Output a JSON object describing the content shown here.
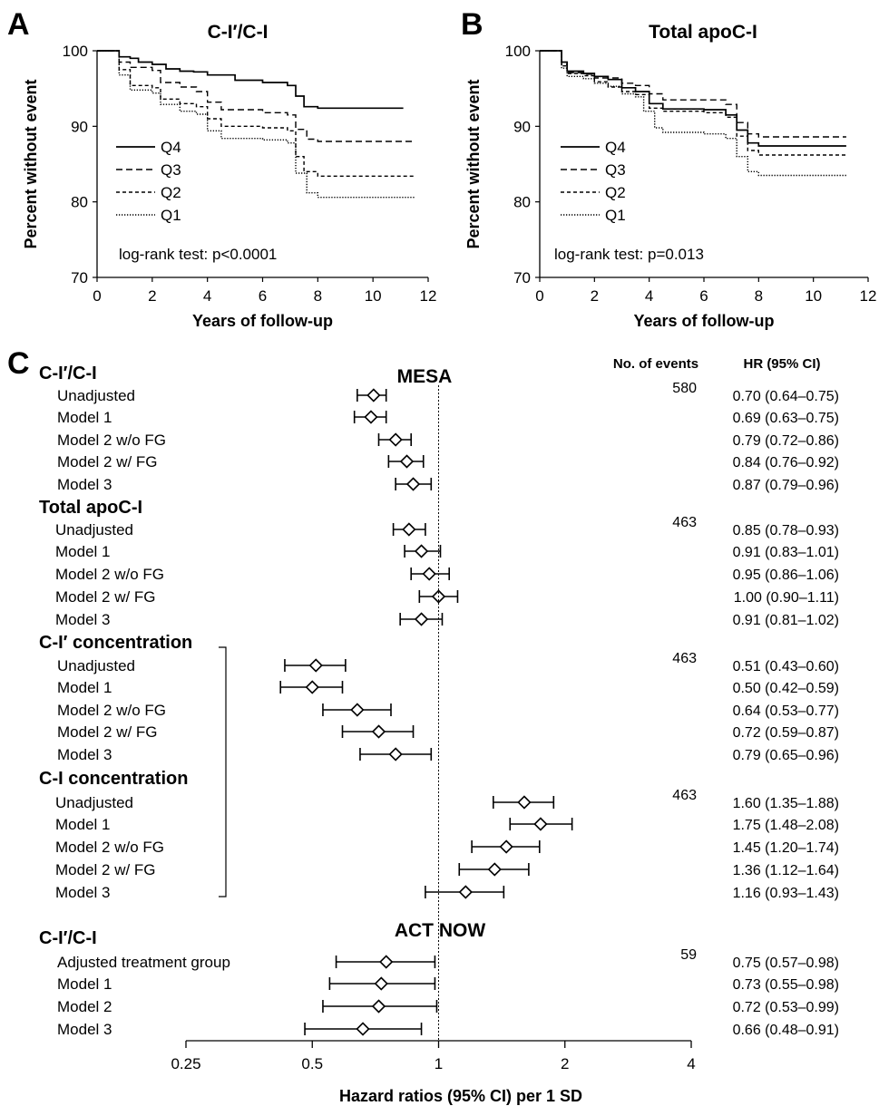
{
  "chart_data": [
    {
      "type": "line",
      "panel": "A",
      "title": "C-I′/C-I",
      "xlabel": "Years of follow-up",
      "ylabel": "Percent without event",
      "xlim": [
        0,
        12
      ],
      "ylim": [
        70,
        100
      ],
      "xticks": [
        0,
        2,
        4,
        6,
        8,
        10,
        12
      ],
      "yticks": [
        70,
        80,
        90,
        100
      ],
      "annotation": "log-rank test: p<0.0001",
      "legend_position": "left",
      "series": [
        {
          "name": "Q4",
          "style": "solid",
          "points": [
            [
              0,
              100
            ],
            [
              0.6,
              100
            ],
            [
              0.8,
              99.2
            ],
            [
              1.2,
              99
            ],
            [
              1.5,
              98.5
            ],
            [
              2,
              98.2
            ],
            [
              2.5,
              97.6
            ],
            [
              3,
              97.3
            ],
            [
              3.5,
              97.2
            ],
            [
              4,
              96.8
            ],
            [
              5,
              96.1
            ],
            [
              6,
              95.8
            ],
            [
              6.9,
              95.4
            ],
            [
              7.2,
              94
            ],
            [
              7.5,
              92.6
            ],
            [
              8,
              92.4
            ],
            [
              11.1,
              92.4
            ]
          ]
        },
        {
          "name": "Q3",
          "style": "dashed",
          "points": [
            [
              0,
              100
            ],
            [
              0.6,
              100
            ],
            [
              0.8,
              98.5
            ],
            [
              1.2,
              97.8
            ],
            [
              2,
              97.4
            ],
            [
              2.3,
              95.8
            ],
            [
              3,
              95.2
            ],
            [
              3.6,
              94.6
            ],
            [
              4,
              93.2
            ],
            [
              4.5,
              92.2
            ],
            [
              6,
              91.8
            ],
            [
              6.9,
              91.5
            ],
            [
              7.2,
              89.6
            ],
            [
              7.6,
              88.3
            ],
            [
              8,
              88
            ],
            [
              11.5,
              88
            ]
          ]
        },
        {
          "name": "Q2",
          "style": "short-dash",
          "points": [
            [
              0,
              100
            ],
            [
              0.6,
              100
            ],
            [
              0.8,
              97.5
            ],
            [
              1.2,
              95.4
            ],
            [
              2,
              95.1
            ],
            [
              2.3,
              93.6
            ],
            [
              3,
              93
            ],
            [
              3.6,
              92.6
            ],
            [
              4,
              91
            ],
            [
              4.5,
              90
            ],
            [
              6,
              89.8
            ],
            [
              6.9,
              89.4
            ],
            [
              7.2,
              86
            ],
            [
              7.5,
              84
            ],
            [
              8,
              83.4
            ],
            [
              11.5,
              83.4
            ]
          ]
        },
        {
          "name": "Q1",
          "style": "dotted",
          "points": [
            [
              0,
              100
            ],
            [
              0.6,
              100
            ],
            [
              0.8,
              96.8
            ],
            [
              1.2,
              94.8
            ],
            [
              2,
              94.4
            ],
            [
              2.3,
              92.9
            ],
            [
              3,
              92
            ],
            [
              3.6,
              91.6
            ],
            [
              4,
              89.4
            ],
            [
              4.5,
              88.4
            ],
            [
              6,
              88.2
            ],
            [
              6.9,
              87.8
            ],
            [
              7.2,
              83.8
            ],
            [
              7.6,
              81.2
            ],
            [
              8,
              80.6
            ],
            [
              11.5,
              80.6
            ]
          ]
        }
      ]
    },
    {
      "type": "line",
      "panel": "B",
      "title": "Total apoC-I",
      "xlabel": "Years of follow-up",
      "ylabel": "Percent without event",
      "xlim": [
        0,
        12
      ],
      "ylim": [
        70,
        100
      ],
      "xticks": [
        0,
        2,
        4,
        6,
        8,
        10,
        12
      ],
      "yticks": [
        70,
        80,
        90,
        100
      ],
      "annotation": "log-rank test: p=0.013",
      "legend_position": "left",
      "series": [
        {
          "name": "Q4",
          "style": "solid",
          "points": [
            [
              0,
              100
            ],
            [
              0.6,
              100
            ],
            [
              0.8,
              98.5
            ],
            [
              1,
              97.3
            ],
            [
              1.6,
              97
            ],
            [
              2,
              96.6
            ],
            [
              2.5,
              96.2
            ],
            [
              3,
              95.1
            ],
            [
              3.5,
              94.6
            ],
            [
              4,
              93
            ],
            [
              4.5,
              92.3
            ],
            [
              6,
              92.2
            ],
            [
              6.8,
              91.5
            ],
            [
              7.2,
              89.5
            ],
            [
              7.6,
              87.8
            ],
            [
              8,
              87.4
            ],
            [
              11.2,
              87.4
            ]
          ]
        },
        {
          "name": "Q3",
          "style": "dashed",
          "points": [
            [
              0,
              100
            ],
            [
              0.6,
              100
            ],
            [
              0.8,
              98.2
            ],
            [
              1,
              97.1
            ],
            [
              1.6,
              96.9
            ],
            [
              2,
              96.4
            ],
            [
              2.5,
              96.4
            ],
            [
              3,
              95.7
            ],
            [
              3.5,
              95.4
            ],
            [
              4,
              94.3
            ],
            [
              4.5,
              93.5
            ],
            [
              6,
              93.5
            ],
            [
              6.8,
              92.9
            ],
            [
              7.2,
              90.5
            ],
            [
              7.6,
              89
            ],
            [
              8,
              88.6
            ],
            [
              11.2,
              88.6
            ]
          ]
        },
        {
          "name": "Q2",
          "style": "short-dash",
          "points": [
            [
              0,
              100
            ],
            [
              0.6,
              100
            ],
            [
              0.8,
              98
            ],
            [
              1,
              97
            ],
            [
              1.6,
              96.7
            ],
            [
              2,
              95.9
            ],
            [
              2.5,
              95.2
            ],
            [
              3,
              94.6
            ],
            [
              3.5,
              94.2
            ],
            [
              4,
              92.4
            ],
            [
              4.5,
              92
            ],
            [
              6,
              91.8
            ],
            [
              6.8,
              91.2
            ],
            [
              7.2,
              88.7
            ],
            [
              7.6,
              86.8
            ],
            [
              8,
              86.2
            ],
            [
              11.2,
              86.2
            ]
          ]
        },
        {
          "name": "Q1",
          "style": "dotted",
          "points": [
            [
              0,
              100
            ],
            [
              0.6,
              100
            ],
            [
              0.8,
              97.7
            ],
            [
              1,
              96.6
            ],
            [
              1.6,
              96.3
            ],
            [
              2,
              95.7
            ],
            [
              2.5,
              95.3
            ],
            [
              3,
              94.3
            ],
            [
              3.5,
              93.9
            ],
            [
              3.8,
              92
            ],
            [
              4.2,
              89.8
            ],
            [
              4.5,
              89.2
            ],
            [
              6,
              89
            ],
            [
              6.8,
              88.4
            ],
            [
              7.2,
              86
            ],
            [
              7.6,
              84
            ],
            [
              8,
              83.5
            ],
            [
              11.2,
              83.5
            ]
          ]
        }
      ]
    },
    {
      "type": "forest",
      "panel": "C",
      "xlabel": "Hazard ratios (95% CI) per 1 SD",
      "xscale": "log2",
      "xlim": [
        0.25,
        4
      ],
      "xticks": [
        0.25,
        0.5,
        1,
        2,
        4
      ],
      "xtick_labels": [
        "0.25",
        "0.5",
        "1",
        "2",
        "4"
      ],
      "reference_line": 1,
      "col_events": "No. of events",
      "col_hr": "HR (95% CI)",
      "cohorts": [
        "MESA",
        "ACT NOW"
      ],
      "groups": [
        {
          "label": "C-I′/C-I",
          "cohort": "MESA",
          "rows": [
            {
              "label": "Unadjusted",
              "events": "580",
              "hr": 0.7,
              "lo": 0.64,
              "hi": 0.75,
              "text": "0.70 (0.64–0.75)"
            },
            {
              "label": "Model 1",
              "events": "",
              "hr": 0.69,
              "lo": 0.63,
              "hi": 0.75,
              "text": "0.69 (0.63–0.75)"
            },
            {
              "label": "Model 2 w/o FG",
              "events": "",
              "hr": 0.79,
              "lo": 0.72,
              "hi": 0.86,
              "text": "0.79 (0.72–0.86)"
            },
            {
              "label": "Model 2 w/ FG",
              "events": "",
              "hr": 0.84,
              "lo": 0.76,
              "hi": 0.92,
              "text": "0.84 (0.76–0.92)"
            },
            {
              "label": "Model 3",
              "events": "",
              "hr": 0.87,
              "lo": 0.79,
              "hi": 0.96,
              "text": "0.87 (0.79–0.96)"
            }
          ]
        },
        {
          "label": "Total apoC-I",
          "cohort": "MESA",
          "rows": [
            {
              "label": "Unadjusted",
              "events": "463",
              "hr": 0.85,
              "lo": 0.78,
              "hi": 0.93,
              "text": "0.85 (0.78–0.93)"
            },
            {
              "label": "Model 1",
              "events": "",
              "hr": 0.91,
              "lo": 0.83,
              "hi": 1.01,
              "text": "0.91 (0.83–1.01)"
            },
            {
              "label": "Model 2 w/o FG",
              "events": "",
              "hr": 0.95,
              "lo": 0.86,
              "hi": 1.06,
              "text": "0.95 (0.86–1.06)"
            },
            {
              "label": "Model 2 w/ FG",
              "events": "",
              "hr": 1.0,
              "lo": 0.9,
              "hi": 1.11,
              "text": "1.00 (0.90–1.11)"
            },
            {
              "label": "Model 3",
              "events": "",
              "hr": 0.91,
              "lo": 0.81,
              "hi": 1.02,
              "text": "0.91 (0.81–1.02)"
            }
          ]
        },
        {
          "label": "C-I′ concentration",
          "cohort": "MESA",
          "bracket": true,
          "rows": [
            {
              "label": "Unadjusted",
              "events": "463",
              "hr": 0.51,
              "lo": 0.43,
              "hi": 0.6,
              "text": "0.51 (0.43–0.60)"
            },
            {
              "label": "Model 1",
              "events": "",
              "hr": 0.5,
              "lo": 0.42,
              "hi": 0.59,
              "text": "0.50 (0.42–0.59)"
            },
            {
              "label": "Model 2 w/o FG",
              "events": "",
              "hr": 0.64,
              "lo": 0.53,
              "hi": 0.77,
              "text": "0.64 (0.53–0.77)"
            },
            {
              "label": "Model 2 w/ FG",
              "events": "",
              "hr": 0.72,
              "lo": 0.59,
              "hi": 0.87,
              "text": "0.72 (0.59–0.87)"
            },
            {
              "label": "Model 3",
              "events": "",
              "hr": 0.79,
              "lo": 0.65,
              "hi": 0.96,
              "text": "0.79 (0.65–0.96)"
            }
          ]
        },
        {
          "label": "C-I concentration",
          "cohort": "MESA",
          "bracket": true,
          "rows": [
            {
              "label": "Unadjusted",
              "events": "463",
              "hr": 1.6,
              "lo": 1.35,
              "hi": 1.88,
              "text": "1.60 (1.35–1.88)"
            },
            {
              "label": "Model 1",
              "events": "",
              "hr": 1.75,
              "lo": 1.48,
              "hi": 2.08,
              "text": "1.75 (1.48–2.08)"
            },
            {
              "label": "Model 2 w/o FG",
              "events": "",
              "hr": 1.45,
              "lo": 1.2,
              "hi": 1.74,
              "text": "1.45 (1.20–1.74)"
            },
            {
              "label": "Model 2 w/ FG",
              "events": "",
              "hr": 1.36,
              "lo": 1.12,
              "hi": 1.64,
              "text": "1.36 (1.12–1.64)"
            },
            {
              "label": "Model 3",
              "events": "",
              "hr": 1.16,
              "lo": 0.93,
              "hi": 1.43,
              "text": "1.16 (0.93–1.43)"
            }
          ]
        },
        {
          "label": "C-I′/C-I",
          "cohort": "ACT NOW",
          "rows": [
            {
              "label": "Adjusted treatment group",
              "events": "59",
              "hr": 0.75,
              "lo": 0.57,
              "hi": 0.98,
              "text": "0.75 (0.57–0.98)"
            },
            {
              "label": "Model 1",
              "events": "",
              "hr": 0.73,
              "lo": 0.55,
              "hi": 0.98,
              "text": "0.73 (0.55–0.98)"
            },
            {
              "label": "Model 2",
              "events": "",
              "hr": 0.72,
              "lo": 0.53,
              "hi": 0.99,
              "text": "0.72 (0.53–0.99)"
            },
            {
              "label": "Model 3",
              "events": "",
              "hr": 0.66,
              "lo": 0.48,
              "hi": 0.91,
              "text": "0.66 (0.48–0.91)"
            }
          ]
        }
      ]
    }
  ]
}
